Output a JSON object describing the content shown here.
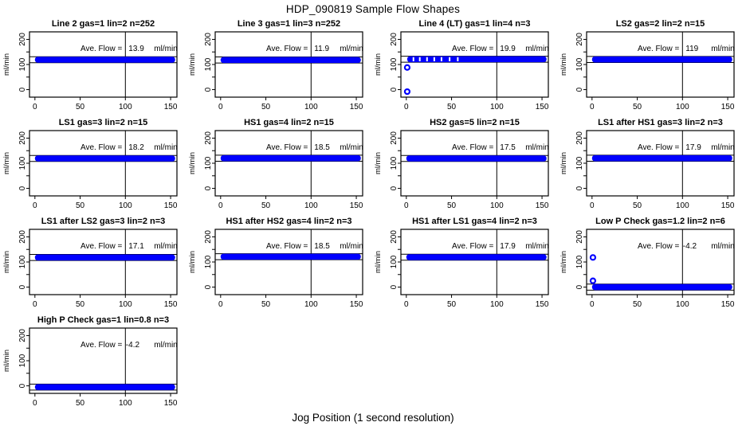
{
  "page": {
    "title": "HDP_090819  Sample Flow Shapes",
    "x_axis_label": "Jog Position (1 second resolution)"
  },
  "chart_data": {
    "type": "scatter",
    "title": "HDP_090819  Sample Flow Shapes",
    "xlabel": "Jog Position (1 second resolution)",
    "ylabel": "ml/min",
    "layout": {
      "rows": 4,
      "cols": 4,
      "grid": false,
      "point_style": "open-circle-dense-band"
    },
    "xlim": [
      -6,
      157
    ],
    "ylim": [
      -30,
      230
    ],
    "xticks": [
      0,
      50,
      100,
      150
    ],
    "yticks": [
      0,
      100,
      200
    ],
    "ytick_minor": [
      50,
      150
    ],
    "vline_x": 100,
    "band_halfwidth": 12,
    "annotation_label": "Ave. Flow =",
    "unit": "ml/min",
    "point_color": "#0000ff",
    "axis_color": "#000000",
    "plots": [
      {
        "title": "Line 2 gas=1 lin=2 n=252",
        "ave_flow": "13.9",
        "band_y": 119,
        "band_x": [
          0,
          155
        ],
        "outliers": []
      },
      {
        "title": "Line 3 gas=1 lin=3 n=252",
        "ave_flow": "11.9",
        "band_y": 118,
        "band_x": [
          0,
          155
        ],
        "outliers": []
      },
      {
        "title": "Line 4 (LT) gas=1 lin=4 n=3",
        "ave_flow": "19.9",
        "band_y": 121,
        "band_x": [
          1,
          155
        ],
        "outliers": [
          [
            1,
            88
          ],
          [
            1,
            -8
          ]
        ],
        "sparse_left": true
      },
      {
        "title": "LS2 gas=2 lin=2 n=15",
        "ave_flow": "119",
        "band_y": 120,
        "band_x": [
          0,
          155
        ],
        "outliers": []
      },
      {
        "title": "LS1 gas=3 lin=2 n=15",
        "ave_flow": "18.2",
        "band_y": 119,
        "band_x": [
          0,
          155
        ],
        "outliers": []
      },
      {
        "title": "HS1 gas=4 lin=2 n=15",
        "ave_flow": "18.5",
        "band_y": 120,
        "band_x": [
          0,
          155
        ],
        "outliers": []
      },
      {
        "title": "HS2 gas=5 lin=2 n=15",
        "ave_flow": "17.5",
        "band_y": 119,
        "band_x": [
          0,
          155
        ],
        "outliers": []
      },
      {
        "title": "LS1 after HS1 gas=3 lin=2 n=3",
        "ave_flow": "17.9",
        "band_y": 120,
        "band_x": [
          0,
          155
        ],
        "outliers": []
      },
      {
        "title": "LS1 after LS2 gas=3 lin=2 n=3",
        "ave_flow": "17.1",
        "band_y": 118,
        "band_x": [
          0,
          155
        ],
        "outliers": []
      },
      {
        "title": "HS1 after HS2 gas=4 lin=2 n=3",
        "ave_flow": "18.5",
        "band_y": 121,
        "band_x": [
          0,
          155
        ],
        "outliers": []
      },
      {
        "title": "HS1 after LS1 gas=4 lin=2 n=3",
        "ave_flow": "17.9",
        "band_y": 119,
        "band_x": [
          0,
          155
        ],
        "outliers": []
      },
      {
        "title": "Low P Check gas=1.2 lin=2 n=6",
        "ave_flow": "-4.2",
        "band_y": 0,
        "band_x": [
          0,
          155
        ],
        "outliers": [
          [
            1,
            118
          ],
          [
            1,
            25
          ]
        ]
      },
      {
        "title": "High P Check gas=1 lin=0.8 n=3",
        "ave_flow": "-4.2",
        "band_y": -5,
        "band_x": [
          0,
          155
        ],
        "outliers": []
      }
    ]
  }
}
